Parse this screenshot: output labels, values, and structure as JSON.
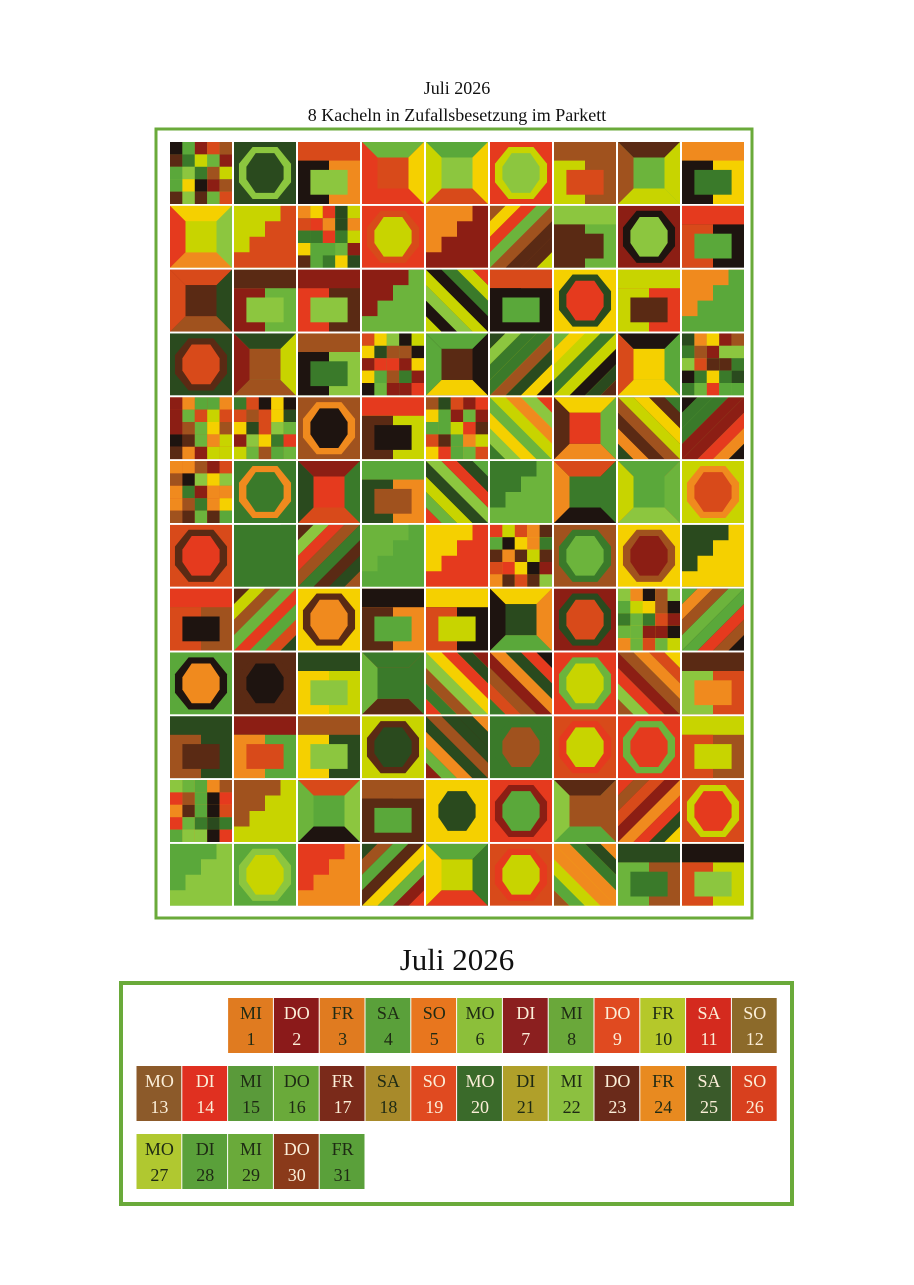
{
  "header": {
    "title": "Juli 2026",
    "subtitle": "8 Kacheln in Zufallsbesetzung im Parkett"
  },
  "calendar": {
    "title": "Juli 2026",
    "days": [
      {
        "weekday": "MI",
        "day": 1,
        "color": "#e07b20"
      },
      {
        "weekday": "DO",
        "day": 2,
        "color": "#8b1a1a"
      },
      {
        "weekday": "FR",
        "day": 3,
        "color": "#e07b20"
      },
      {
        "weekday": "SA",
        "day": 4,
        "color": "#5aa03a"
      },
      {
        "weekday": "SO",
        "day": 5,
        "color": "#e8761e"
      },
      {
        "weekday": "MO",
        "day": 6,
        "color": "#8cbf3a"
      },
      {
        "weekday": "DI",
        "day": 7,
        "color": "#8b1f1f"
      },
      {
        "weekday": "MI",
        "day": 8,
        "color": "#6aa83a"
      },
      {
        "weekday": "DO",
        "day": 9,
        "color": "#e04a20"
      },
      {
        "weekday": "FR",
        "day": 10,
        "color": "#b5c82a"
      },
      {
        "weekday": "SA",
        "day": 11,
        "color": "#d42a1e"
      },
      {
        "weekday": "SO",
        "day": 12,
        "color": "#8c6a2a"
      },
      {
        "weekday": "MO",
        "day": 13,
        "color": "#8c5a2a"
      },
      {
        "weekday": "DI",
        "day": 14,
        "color": "#e03020"
      },
      {
        "weekday": "MI",
        "day": 15,
        "color": "#5a9a3a"
      },
      {
        "weekday": "DO",
        "day": 16,
        "color": "#6aaa3a"
      },
      {
        "weekday": "FR",
        "day": 17,
        "color": "#7a2a1a"
      },
      {
        "weekday": "SA",
        "day": 18,
        "color": "#a88a2a"
      },
      {
        "weekday": "SO",
        "day": 19,
        "color": "#e04a20"
      },
      {
        "weekday": "MO",
        "day": 20,
        "color": "#3a6a2a"
      },
      {
        "weekday": "DI",
        "day": 21,
        "color": "#b0a02a"
      },
      {
        "weekday": "MI",
        "day": 22,
        "color": "#8cc040"
      },
      {
        "weekday": "DO",
        "day": 23,
        "color": "#6a2a1a"
      },
      {
        "weekday": "FR",
        "day": 24,
        "color": "#e88a20"
      },
      {
        "weekday": "SA",
        "day": 25,
        "color": "#3a5a2a"
      },
      {
        "weekday": "SO",
        "day": 26,
        "color": "#d8401e"
      },
      {
        "weekday": "MO",
        "day": 27,
        "color": "#b0c830"
      },
      {
        "weekday": "DI",
        "day": 28,
        "color": "#5aa03a"
      },
      {
        "weekday": "MI",
        "day": 29,
        "color": "#6aaa3a"
      },
      {
        "weekday": "DO",
        "day": 30,
        "color": "#8a3a1a"
      },
      {
        "weekday": "FR",
        "day": 31,
        "color": "#5aa03a"
      }
    ]
  }
}
